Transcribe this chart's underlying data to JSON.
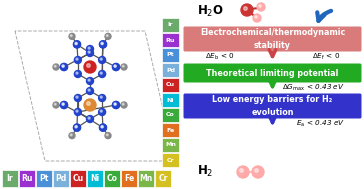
{
  "elements": [
    "Ir",
    "Ru",
    "Pt",
    "Pd",
    "Cu",
    "Ni",
    "Co",
    "Fe",
    "Mn",
    "Cr"
  ],
  "element_colors": [
    "#6aaa6a",
    "#9b30d0",
    "#4a90d9",
    "#7ab0d9",
    "#cc2222",
    "#00bcd4",
    "#3aaa3a",
    "#e07020",
    "#7ab648",
    "#d4c020"
  ],
  "box1_color": "#d97b7b",
  "box1_text": "Electrochemical/thermodynamic\nstability",
  "box2_color": "#22aa22",
  "box2_text": "Theoretical limiting potential",
  "box3_color": "#3333cc",
  "box3_text": "Low energy barriers for H₂\nevolution",
  "arrow_color_big": "#2266bb",
  "arrow_color_small": "#cc4444",
  "arrow_color_green": "#22aa22",
  "arrow_color_blue": "#3333cc",
  "bg_color": "white",
  "blue_atom": "#2244cc",
  "gray_atom": "#888888",
  "red_atom": "#cc2222",
  "orange_atom": "#dd8833",
  "pink_atom": "#ffaaaa",
  "dark_red_atom": "#cc3333"
}
